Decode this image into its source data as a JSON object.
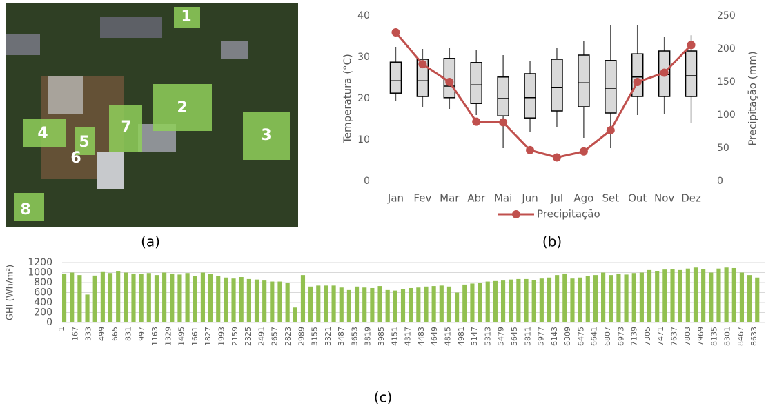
{
  "panel_a": {
    "caption": "(a)",
    "labels": [
      "1",
      "2",
      "3",
      "4",
      "5",
      "6",
      "7",
      "8"
    ]
  },
  "chart_data": [
    {
      "type": "box",
      "caption": "(b)",
      "y_label": "Temperatura (°C)",
      "y2_label": "Precipitação (mm)",
      "categories": [
        "Jan",
        "Fev",
        "Mar",
        "Abr",
        "Mai",
        "Jun",
        "Jul",
        "Ago",
        "Set",
        "Out",
        "Nov",
        "Dez"
      ],
      "boxes": {
        "min": [
          19.5,
          18,
          17.5,
          16,
          8,
          12,
          13,
          10.5,
          8,
          16,
          16.3,
          14
        ],
        "q1": [
          21.3,
          20.5,
          20.2,
          18.8,
          15.8,
          15.3,
          17,
          18,
          16.5,
          20.5,
          20.5,
          20.5
        ],
        "median": [
          24.3,
          24.3,
          23,
          23.3,
          20,
          20.2,
          22.7,
          23.8,
          22.5,
          25.2,
          25.8,
          25.5
        ],
        "q3": [
          28.8,
          29.5,
          29.7,
          28.7,
          25.2,
          26,
          29.5,
          30.5,
          29.2,
          30.8,
          31.5,
          31.5
        ],
        "max": [
          32.5,
          32,
          32.3,
          31.8,
          30.5,
          29,
          32.3,
          34,
          37.8,
          37.8,
          35,
          35.3
        ],
        "color": "#d9d9d9"
      },
      "series": [
        {
          "name": "Precipitação",
          "color": "#c0504d",
          "axis": "y2",
          "values": [
            225,
            177,
            150,
            90,
            89,
            47,
            36,
            45,
            77,
            150,
            164,
            206
          ]
        }
      ],
      "ylim": [
        0,
        40
      ],
      "yticks": [
        0,
        10,
        20,
        30,
        40
      ],
      "y2lim": [
        0,
        250
      ],
      "y2ticks": [
        0,
        50,
        100,
        150,
        200,
        250
      ],
      "legend": "bottom"
    },
    {
      "type": "bar",
      "caption": "(c)",
      "y_label": "GHI (Wh/m²)",
      "color": "#92c050",
      "grid": true,
      "xlim": [
        1,
        8760
      ],
      "ylim": [
        0,
        1200
      ],
      "yticks": [
        0,
        200,
        400,
        600,
        800,
        1000,
        1200
      ],
      "xticks": [
        1,
        167,
        333,
        499,
        665,
        831,
        997,
        1163,
        1329,
        1495,
        1661,
        1827,
        1993,
        2159,
        2325,
        2491,
        2657,
        2823,
        2989,
        3155,
        3321,
        3487,
        3653,
        3819,
        3985,
        4151,
        4317,
        4483,
        4649,
        4815,
        4981,
        5147,
        5313,
        5479,
        5645,
        5811,
        5977,
        6143,
        6309,
        6475,
        6641,
        6807,
        6973,
        7139,
        7305,
        7471,
        7637,
        7803,
        7969,
        8135,
        8301,
        8467,
        8633
      ],
      "x": [
        1,
        97,
        193,
        289,
        385,
        481,
        577,
        673,
        769,
        865,
        961,
        1057,
        1153,
        1249,
        1345,
        1441,
        1537,
        1633,
        1729,
        1825,
        1921,
        2017,
        2113,
        2209,
        2305,
        2401,
        2497,
        2593,
        2689,
        2785,
        2881,
        2977,
        3073,
        3169,
        3265,
        3361,
        3457,
        3553,
        3649,
        3745,
        3841,
        3937,
        4033,
        4129,
        4225,
        4321,
        4417,
        4513,
        4609,
        4705,
        4801,
        4897,
        4993,
        5089,
        5185,
        5281,
        5377,
        5473,
        5569,
        5665,
        5761,
        5857,
        5953,
        6049,
        6145,
        6241,
        6337,
        6433,
        6529,
        6625,
        6721,
        6817,
        6913,
        7009,
        7105,
        7201,
        7297,
        7393,
        7489,
        7585,
        7681,
        7777,
        7873,
        7969,
        8065,
        8161,
        8257,
        8353,
        8449,
        8545,
        8641
      ],
      "values": [
        980,
        1000,
        950,
        560,
        940,
        1010,
        990,
        1020,
        1000,
        980,
        970,
        990,
        950,
        1000,
        980,
        960,
        990,
        930,
        1000,
        970,
        930,
        900,
        880,
        910,
        870,
        860,
        840,
        820,
        820,
        800,
        300,
        950,
        720,
        740,
        740,
        740,
        700,
        650,
        720,
        700,
        690,
        730,
        650,
        640,
        670,
        690,
        700,
        720,
        730,
        740,
        720,
        600,
        760,
        780,
        800,
        820,
        830,
        840,
        860,
        870,
        870,
        850,
        880,
        900,
        950,
        980,
        880,
        900,
        930,
        950,
        1000,
        950,
        980,
        960,
        990,
        1000,
        1050,
        1030,
        1060,
        1070,
        1050,
        1080,
        1100,
        1070,
        1000,
        1080,
        1100,
        1090,
        1000,
        950,
        900
      ]
    }
  ]
}
